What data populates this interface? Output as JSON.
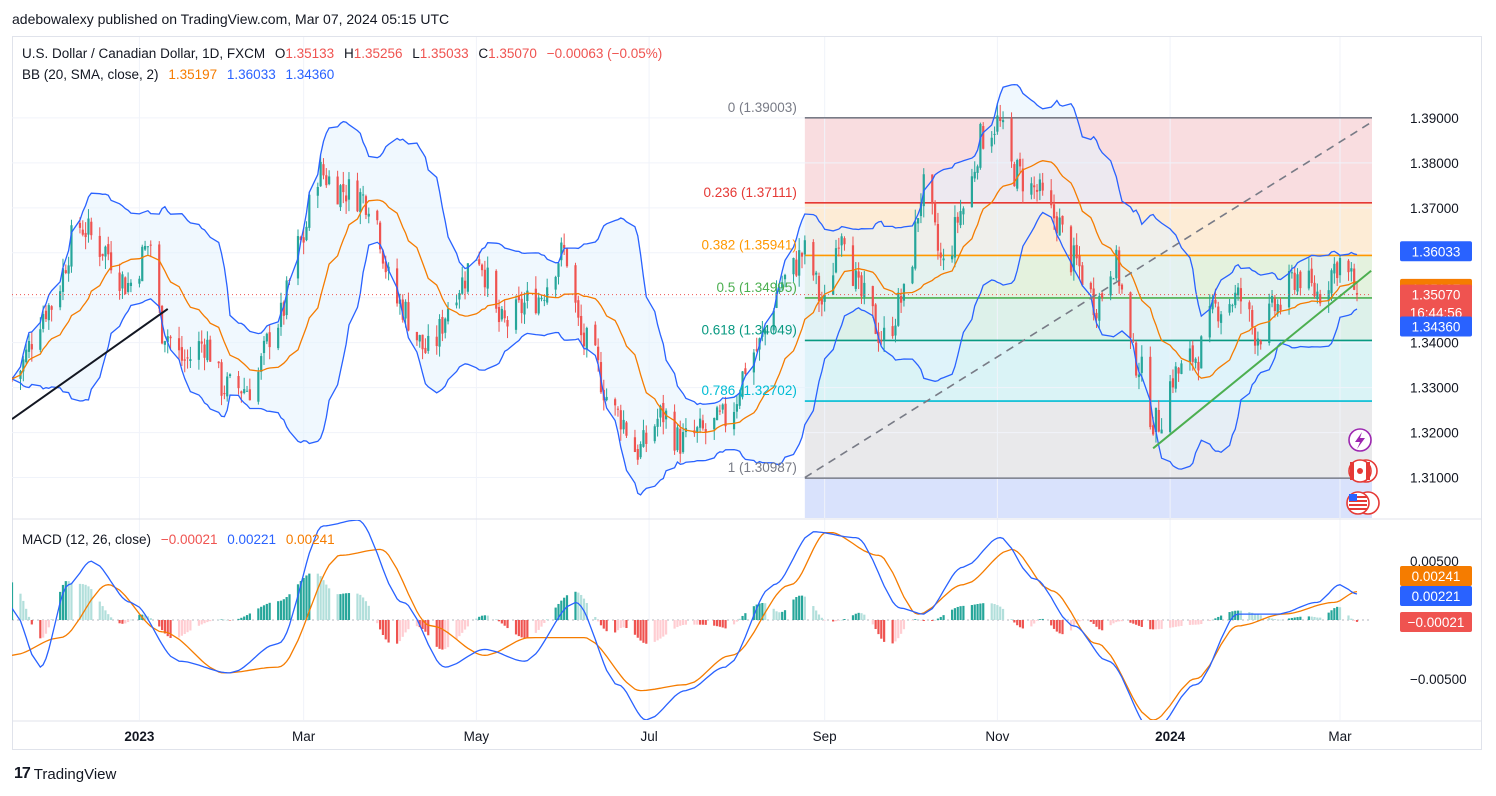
{
  "header": {
    "publisher_line": "adebowalexy published on TradingView.com, Mar 07, 2024 05:15 UTC"
  },
  "legend": {
    "symbol": "U.S. Dollar / Canadian Dollar, 1D, FXCM",
    "o_label": "O",
    "o_value": "1.35133",
    "h_label": "H",
    "h_value": "1.35256",
    "l_label": "L",
    "l_value": "1.35033",
    "c_label": "C",
    "c_value": "1.35070",
    "change": "−0.00063 (−0.05%)",
    "bb_label": "BB (20, SMA, close, 2)",
    "bb_basis": "1.35197",
    "bb_upper": "1.36033",
    "bb_lower": "1.34360",
    "macd_label": "MACD (12, 26, close)",
    "macd_hist": "−0.00021",
    "macd_line": "0.00221",
    "macd_signal": "0.00241"
  },
  "colors": {
    "up": "#26a69a",
    "down": "#ef5350",
    "bb_band": "#2962ff",
    "bb_basis": "#f57c00",
    "bb_fill": "#e3f2fd",
    "macd_line": "#2962ff",
    "signal_line": "#f57c00",
    "text": "#131722",
    "axis_text": "#131722"
  },
  "footer": {
    "brand": "TradingView",
    "logo_glyph": "17"
  },
  "chart_data": [
    {
      "type": "candlestick",
      "title": "U.S. Dollar / Canadian Dollar, 1D, FXCM",
      "ylim": [
        1.301,
        1.408
      ],
      "y_ticks": [
        "1.39000",
        "1.38000",
        "1.37000",
        "1.36000",
        "1.35000",
        "1.34000",
        "1.33000",
        "1.32000",
        "1.31000"
      ],
      "y_tick_values": [
        1.39,
        1.38,
        1.37,
        1.36,
        1.35,
        1.34,
        1.33,
        1.32,
        1.31
      ],
      "x_ticks": [
        "2023",
        "Mar",
        "May",
        "Jul",
        "Sep",
        "Nov",
        "2024",
        "Mar"
      ],
      "x_tick_dates": [
        "2023-01-02",
        "2023-03-01",
        "2023-05-01",
        "2023-07-01",
        "2023-09-01",
        "2023-11-01",
        "2024-01-01",
        "2024-03-01"
      ],
      "date_range": [
        "2022-11-18",
        "2024-03-07"
      ],
      "price_path": [
        [
          "2022-11-18",
          1.332
        ],
        [
          "2022-12-01",
          1.348
        ],
        [
          "2022-12-12",
          1.366
        ],
        [
          "2022-12-20",
          1.361
        ],
        [
          "2022-12-29",
          1.353
        ],
        [
          "2023-01-06",
          1.362
        ],
        [
          "2023-01-10",
          1.343
        ],
        [
          "2023-01-18",
          1.336
        ],
        [
          "2023-01-25",
          1.34
        ],
        [
          "2023-02-01",
          1.33
        ],
        [
          "2023-02-10",
          1.33
        ],
        [
          "2023-02-20",
          1.345
        ],
        [
          "2023-02-28",
          1.362
        ],
        [
          "2023-03-06",
          1.378
        ],
        [
          "2023-03-15",
          1.374
        ],
        [
          "2023-03-24",
          1.372
        ],
        [
          "2023-04-03",
          1.349
        ],
        [
          "2023-04-14",
          1.338
        ],
        [
          "2023-04-25",
          1.353
        ],
        [
          "2023-05-01",
          1.36
        ],
        [
          "2023-05-10",
          1.344
        ],
        [
          "2023-05-22",
          1.35
        ],
        [
          "2023-06-01",
          1.36
        ],
        [
          "2023-06-08",
          1.34
        ],
        [
          "2023-06-20",
          1.324
        ],
        [
          "2023-06-27",
          1.316
        ],
        [
          "2023-07-06",
          1.324
        ],
        [
          "2023-07-12",
          1.318
        ],
        [
          "2023-07-20",
          1.32
        ],
        [
          "2023-07-28",
          1.323
        ],
        [
          "2023-08-07",
          1.338
        ],
        [
          "2023-08-18",
          1.354
        ],
        [
          "2023-08-25",
          1.36
        ],
        [
          "2023-09-01",
          1.348
        ],
        [
          "2023-09-07",
          1.366
        ],
        [
          "2023-09-14",
          1.35
        ],
        [
          "2023-09-22",
          1.341
        ],
        [
          "2023-09-29",
          1.35
        ],
        [
          "2023-10-06",
          1.374
        ],
        [
          "2023-10-13",
          1.357
        ],
        [
          "2023-10-20",
          1.37
        ],
        [
          "2023-10-27",
          1.386
        ],
        [
          "2023-11-01",
          1.389
        ],
        [
          "2023-11-07",
          1.378
        ],
        [
          "2023-11-14",
          1.374
        ],
        [
          "2023-11-21",
          1.368
        ],
        [
          "2023-11-28",
          1.358
        ],
        [
          "2023-12-06",
          1.349
        ],
        [
          "2023-12-12",
          1.358
        ],
        [
          "2023-12-20",
          1.336
        ],
        [
          "2023-12-27",
          1.322
        ],
        [
          "2024-01-03",
          1.333
        ],
        [
          "2024-01-10",
          1.337
        ],
        [
          "2024-01-18",
          1.348
        ],
        [
          "2024-01-25",
          1.35
        ],
        [
          "2024-02-01",
          1.342
        ],
        [
          "2024-02-08",
          1.348
        ],
        [
          "2024-02-15",
          1.355
        ],
        [
          "2024-02-22",
          1.351
        ],
        [
          "2024-03-01",
          1.358
        ],
        [
          "2024-03-05",
          1.354
        ],
        [
          "2024-03-07",
          1.3507
        ]
      ],
      "bollinger": {
        "upper": "1.36033",
        "basis": "1.35197",
        "lower": "1.34360"
      },
      "fibonacci": [
        {
          "ratio": "0",
          "label": "0 (1.39003)",
          "price": 1.39003,
          "line_color": "#787b86",
          "zone_color": "#f8d7da"
        },
        {
          "ratio": "0.236",
          "label": "0.236 (1.37111)",
          "price": 1.37111,
          "line_color": "#e53935",
          "zone_color": "#fde9cf"
        },
        {
          "ratio": "0.382",
          "label": "0.382 (1.35941)",
          "price": 1.35941,
          "line_color": "#ff9800",
          "zone_color": "#dff0d8"
        },
        {
          "ratio": "0.5",
          "label": "0.5 (1.34995)",
          "price": 1.34995,
          "line_color": "#4caf50",
          "zone_color": "#d7efe6"
        },
        {
          "ratio": "0.618",
          "label": "0.618 (1.34049)",
          "price": 1.34049,
          "line_color": "#089981",
          "zone_color": "#d3f1f4"
        },
        {
          "ratio": "0.786",
          "label": "0.786 (1.32702)",
          "price": 1.32702,
          "line_color": "#00bcd4",
          "zone_color": "#e5e5e8"
        },
        {
          "ratio": "1",
          "label": "1 (1.30987)",
          "price": 1.30987,
          "line_color": "#787b86",
          "zone_color": "#d2ddfb"
        }
      ],
      "trend_lines": [
        {
          "color": "#131722",
          "from": [
            "2022-11-18",
            1.323
          ],
          "to": [
            "2023-01-12",
            1.3475
          ]
        },
        {
          "color": "#4caf50",
          "from": [
            "2023-12-26",
            1.3165
          ],
          "to": [
            "2024-03-12",
            1.356
          ]
        },
        {
          "color": "#787b86",
          "dashed": true,
          "from": [
            "2023-08-25",
            1.31
          ],
          "to": [
            "2024-03-12",
            1.389
          ]
        }
      ],
      "price_scale_labels": [
        {
          "text": "1.36033",
          "price": 1.36033,
          "bg": "#2962ff"
        },
        {
          "text": "1.35197",
          "price": 1.35197,
          "bg": "#f57c00"
        },
        {
          "text": "1.35070",
          "price": 1.3507,
          "bg": "#ef5350",
          "sub_text": "16:44:56"
        },
        {
          "text": "1.34360",
          "price": 1.3436,
          "bg": "#2962ff"
        }
      ],
      "event_icons": [
        "lightning-icon",
        "canada-flag-icon",
        "usa-flag-icon"
      ]
    },
    {
      "type": "macd",
      "title": "MACD (12, 26, close)",
      "ylim": [
        -0.0085,
        0.0085
      ],
      "y_ticks": [
        "0.00500",
        "−0.00500"
      ],
      "y_tick_values": [
        0.005,
        -0.005
      ],
      "macd_path": [
        [
          "2022-11-18",
          0.001
        ],
        [
          "2022-11-28",
          -0.004
        ],
        [
          "2022-12-08",
          0.003
        ],
        [
          "2022-12-16",
          0.005
        ],
        [
          "2022-12-30",
          0.0015
        ],
        [
          "2023-01-16",
          -0.0035
        ],
        [
          "2023-02-03",
          -0.0045
        ],
        [
          "2023-02-20",
          -0.002
        ],
        [
          "2023-03-08",
          0.008
        ],
        [
          "2023-03-20",
          0.0085
        ],
        [
          "2023-04-05",
          0.0015
        ],
        [
          "2023-04-20",
          -0.004
        ],
        [
          "2023-05-04",
          -0.0025
        ],
        [
          "2023-05-18",
          -0.0035
        ],
        [
          "2023-06-05",
          0.0015
        ],
        [
          "2023-06-20",
          -0.0055
        ],
        [
          "2023-06-30",
          -0.0085
        ],
        [
          "2023-07-14",
          -0.006
        ],
        [
          "2023-07-28",
          -0.004
        ],
        [
          "2023-08-14",
          0.003
        ],
        [
          "2023-08-28",
          0.0075
        ],
        [
          "2023-09-12",
          0.007
        ],
        [
          "2023-09-28",
          0.001
        ],
        [
          "2023-10-06",
          0.0005
        ],
        [
          "2023-10-20",
          0.0045
        ],
        [
          "2023-11-02",
          0.007
        ],
        [
          "2023-11-14",
          0.0035
        ],
        [
          "2023-11-28",
          -0.0005
        ],
        [
          "2023-12-10",
          -0.0035
        ],
        [
          "2023-12-26",
          -0.0095
        ],
        [
          "2024-01-10",
          -0.0055
        ],
        [
          "2024-01-25",
          0.0005
        ],
        [
          "2024-02-08",
          0.0005
        ],
        [
          "2024-02-22",
          0.0015
        ],
        [
          "2024-03-01",
          0.003
        ],
        [
          "2024-03-07",
          0.00221
        ]
      ],
      "signal_path": [
        [
          "2022-11-18",
          -0.003
        ],
        [
          "2022-12-05",
          -0.0015
        ],
        [
          "2022-12-22",
          0.003
        ],
        [
          "2023-01-10",
          -0.001
        ],
        [
          "2023-02-01",
          -0.0045
        ],
        [
          "2023-02-20",
          -0.004
        ],
        [
          "2023-03-14",
          0.0055
        ],
        [
          "2023-03-28",
          0.006
        ],
        [
          "2023-04-15",
          -0.0005
        ],
        [
          "2023-05-04",
          -0.003
        ],
        [
          "2023-05-20",
          -0.0015
        ],
        [
          "2023-06-08",
          -0.0015
        ],
        [
          "2023-06-28",
          -0.006
        ],
        [
          "2023-07-14",
          -0.0055
        ],
        [
          "2023-07-30",
          -0.003
        ],
        [
          "2023-08-20",
          0.003
        ],
        [
          "2023-09-02",
          0.0075
        ],
        [
          "2023-09-20",
          0.0055
        ],
        [
          "2023-10-04",
          0.0005
        ],
        [
          "2023-10-20",
          0.003
        ],
        [
          "2023-11-06",
          0.006
        ],
        [
          "2023-11-20",
          0.0025
        ],
        [
          "2023-12-06",
          -0.002
        ],
        [
          "2023-12-26",
          -0.0085
        ],
        [
          "2024-01-10",
          -0.005
        ],
        [
          "2024-01-25",
          -0.0005
        ],
        [
          "2024-02-10",
          0.0005
        ],
        [
          "2024-02-28",
          0.0015
        ],
        [
          "2024-03-07",
          0.00241
        ]
      ],
      "hist_color_rule": "green above zero, red below; lighter while shrinking",
      "scale_labels": [
        {
          "text": "0.00241",
          "value": 0.00241,
          "bg": "#f57c00"
        },
        {
          "text": "0.00221",
          "value": 0.00221,
          "bg": "#2962ff"
        },
        {
          "text": "−0.00021",
          "value": -0.00021,
          "bg": "#ef5350"
        }
      ]
    }
  ]
}
